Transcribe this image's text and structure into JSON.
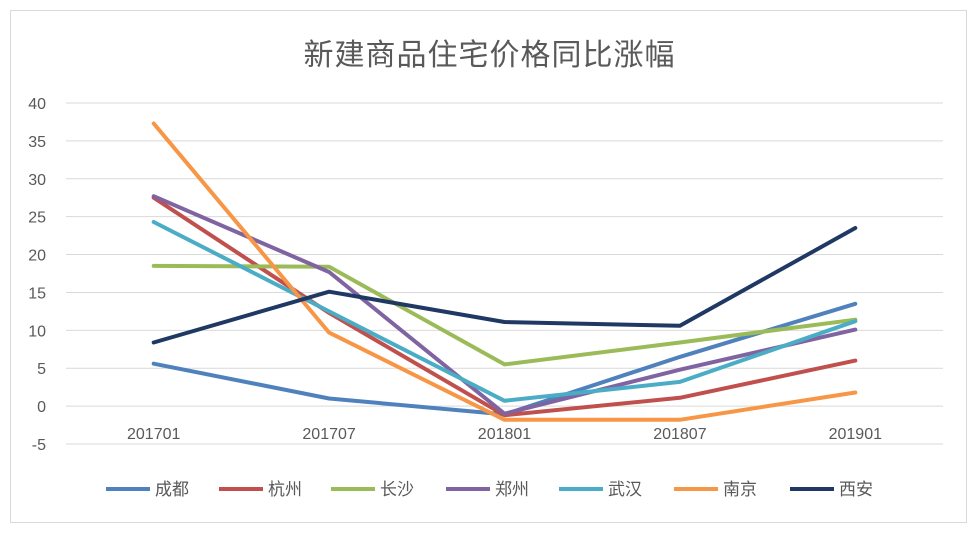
{
  "chart_data": {
    "type": "line",
    "title": "新建商品住宅价格同比涨幅",
    "xlabel": "",
    "ylabel": "",
    "categories": [
      "201701",
      "201707",
      "201801",
      "201807",
      "201901"
    ],
    "ylim": [
      -5,
      40
    ],
    "yticks": [
      -5,
      0,
      5,
      10,
      15,
      20,
      25,
      30,
      35,
      40
    ],
    "grid": true,
    "legend_position": "bottom",
    "series": [
      {
        "name": "成都",
        "color": "#4f81bd",
        "values": [
          5.6,
          1.0,
          -1.1,
          6.5,
          13.5
        ]
      },
      {
        "name": "杭州",
        "color": "#c0504d",
        "values": [
          27.5,
          12.3,
          -1.2,
          1.1,
          6.0
        ]
      },
      {
        "name": "长沙",
        "color": "#9bbb59",
        "values": [
          18.5,
          18.4,
          5.5,
          8.4,
          11.4
        ]
      },
      {
        "name": "郑州",
        "color": "#8064a2",
        "values": [
          27.7,
          17.7,
          -1.0,
          4.8,
          10.1
        ]
      },
      {
        "name": "武汉",
        "color": "#4bacc6",
        "values": [
          24.3,
          12.5,
          0.7,
          3.2,
          11.2
        ]
      },
      {
        "name": "南京",
        "color": "#f79646",
        "values": [
          37.3,
          9.7,
          -1.8,
          -1.8,
          1.8
        ]
      },
      {
        "name": "西安",
        "color": "#1f3864",
        "values": [
          8.4,
          15.1,
          11.1,
          10.6,
          23.5
        ]
      }
    ]
  }
}
